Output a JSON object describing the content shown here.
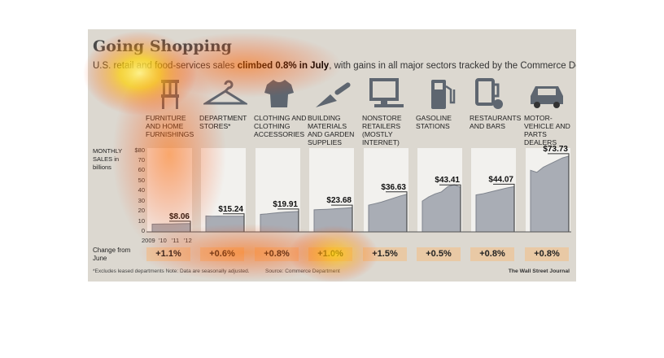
{
  "title": "Going Shopping",
  "subtitle": {
    "before": "U.S. retail and food-services sales ",
    "highlight": "climbed 0.8% in July",
    "after": ", with gains in all major sectors tracked by the Commerce Department."
  },
  "y_axis_title": "MONTHLY SALES in billions",
  "change_title": "Change from June",
  "footnote": "*Excludes leased departments   Note: Data are seasonally adjusted.",
  "source": "Source: Commerce Department",
  "credit": "The Wall Street Journal",
  "colors": {
    "panel": "#f2f1ee",
    "area": "#a9adb5",
    "area_top": "#7f848d",
    "icon": "#5e6670",
    "change_box": "#e9c9a5",
    "heat": "#ff6a00"
  },
  "icons": [
    "chair-icon",
    "hanger-icon",
    "shirt-icon",
    "trowel-icon",
    "computer-icon",
    "gas-pump-icon",
    "beer-mug-icon",
    "car-icon"
  ],
  "chart_data": {
    "type": "area",
    "title": "Going Shopping",
    "ylabel": "MONTHLY SALES in billions",
    "ylim": [
      0,
      80
    ],
    "yticks": [
      "$80",
      "70",
      "60",
      "50",
      "40",
      "30",
      "20",
      "10",
      "0"
    ],
    "xticks": [
      "2009",
      "'10",
      "'11",
      "'12"
    ],
    "series": [
      {
        "name": "FURNITURE AND HOME FURNISHINGS",
        "latest_label": "$8.06",
        "change": "+1.1%",
        "values": [
          7.5,
          7.6,
          7.7,
          7.8,
          7.9,
          8.0,
          8.06
        ]
      },
      {
        "name": "DEPARTMENT STORES*",
        "latest_label": "$15.24",
        "change": "+0.6%",
        "values": [
          15.5,
          15.3,
          15.4,
          15.2,
          15.3,
          15.2,
          15.24
        ]
      },
      {
        "name": "CLOTHING AND CLOTHING ACCESSORIES",
        "latest_label": "$19.91",
        "change": "+0.8%",
        "values": [
          17.0,
          17.5,
          18.2,
          18.8,
          19.3,
          19.6,
          19.91
        ]
      },
      {
        "name": "BUILDING MATERIALS AND GARDEN SUPPLIES",
        "latest_label": "$23.68",
        "change": "+1.0%",
        "values": [
          21.5,
          21.8,
          22.0,
          22.3,
          22.8,
          23.2,
          23.68
        ]
      },
      {
        "name": "NONSTORE RETAILERS (MOSTLY INTERNET)",
        "latest_label": "$36.63",
        "change": "+1.5%",
        "values": [
          26.0,
          27.5,
          29.0,
          31.0,
          33.0,
          35.0,
          36.63
        ]
      },
      {
        "name": "GASOLINE STATIONS",
        "latest_label": "$43.41",
        "change": "+0.5%",
        "values": [
          30.0,
          34.0,
          37.0,
          39.0,
          44.0,
          46.0,
          43.41
        ]
      },
      {
        "name": "RESTAURANTS AND BARS",
        "latest_label": "$44.07",
        "change": "+0.8%",
        "values": [
          36.0,
          37.0,
          38.5,
          40.0,
          41.5,
          43.0,
          44.07
        ]
      },
      {
        "name": "MOTOR-VEHICLE AND PARTS DEALERS",
        "latest_label": "$73.73",
        "change": "+0.8%",
        "values": [
          60.0,
          58.0,
          63.0,
          66.0,
          69.0,
          72.0,
          73.73
        ]
      }
    ]
  }
}
